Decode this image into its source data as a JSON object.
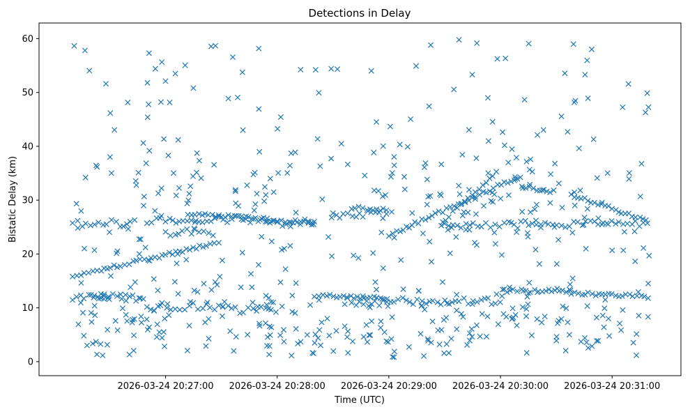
{
  "chart_data": {
    "type": "scatter",
    "title": "Detections in Delay",
    "xlabel": "Time (UTC)",
    "ylabel": "Bistatic Delay (km)",
    "x_tick_labels": [
      "2026-03-24 20:27:00",
      "2026-03-24 20:28:00",
      "2026-03-24 20:29:00",
      "2026-03-24 20:30:00",
      "2026-03-24 20:31:00"
    ],
    "y_tick_labels": [
      "0",
      "10",
      "20",
      "30",
      "40",
      "50",
      "60"
    ],
    "xlim": [
      "2026-03-24 20:25:52",
      "2026-03-24 20:31:37"
    ],
    "ylim": [
      -2.6,
      62.9
    ],
    "grid": false,
    "marker": "x",
    "marker_color": "#1f77b4",
    "series": [
      {
        "tracks": [
          {
            "x0": "2026-03-24 20:26:10",
            "x1": "2026-03-24 20:27:27",
            "y0": 15.8,
            "y1": 22.0
          },
          {
            "x0": "2026-03-24 20:29:00",
            "x1": "2026-03-24 20:30:11",
            "y0": 23.5,
            "y1": 34.5
          },
          {
            "x0": "2026-03-24 20:29:29",
            "x1": "2026-03-24 20:30:00",
            "y0": 26.0,
            "y1": 35.8
          },
          {
            "x0": "2026-03-24 20:30:38",
            "x1": "2026-03-24 20:31:20",
            "y0": 31.0,
            "y1": 26.0
          },
          {
            "x0": "2026-03-24 20:30:12",
            "x1": "2026-03-24 20:30:30",
            "y0": 32.5,
            "y1": 31.5
          },
          {
            "x0": "2026-03-24 20:27:12",
            "x1": "2026-03-24 20:28:20",
            "y0": 27.5,
            "y1": 25.8
          },
          {
            "x0": "2026-03-24 20:28:40",
            "x1": "2026-03-24 20:29:00",
            "y0": 28.6,
            "y1": 28.2
          },
          {
            "x0": "2026-03-24 20:30:02",
            "x1": "2026-03-24 20:30:38",
            "y0": 13.2,
            "y1": 13.1
          },
          {
            "x0": "2026-03-24 20:30:38",
            "x1": "2026-03-24 20:31:20",
            "y0": 12.8,
            "y1": 12.0
          },
          {
            "x0": "2026-03-24 20:28:20",
            "x1": "2026-03-24 20:29:00",
            "y0": 12.3,
            "y1": 11.8
          },
          {
            "x0": "2026-03-24 20:26:20",
            "x1": "2026-03-24 20:26:30",
            "y0": 12.2,
            "y1": 11.5
          }
        ],
        "bands": [
          {
            "x0": "2026-03-24 20:26:10",
            "x1": "2026-03-24 20:26:45",
            "y": 25.7
          },
          {
            "x0": "2026-03-24 20:26:50",
            "x1": "2026-03-24 20:28:00",
            "y": 26.4
          },
          {
            "x0": "2026-03-24 20:28:00",
            "x1": "2026-03-24 20:28:20",
            "y": 25.8
          },
          {
            "x0": "2026-03-24 20:28:30",
            "x1": "2026-03-24 20:29:00",
            "y": 27.3
          },
          {
            "x0": "2026-03-24 20:29:30",
            "x1": "2026-03-24 20:31:20",
            "y": 25.5
          },
          {
            "x0": "2026-03-24 20:26:10",
            "x1": "2026-03-24 20:26:50",
            "y": 11.9
          },
          {
            "x0": "2026-03-24 20:26:50",
            "x1": "2026-03-24 20:27:40",
            "y": 10.2
          },
          {
            "x0": "2026-03-24 20:27:40",
            "x1": "2026-03-24 20:28:00",
            "y": 9.5
          },
          {
            "x0": "2026-03-24 20:28:40",
            "x1": "2026-03-24 20:29:05",
            "y": 10.8
          },
          {
            "x0": "2026-03-24 20:29:05",
            "x1": "2026-03-24 20:30:00",
            "y": 11.3
          },
          {
            "x0": "2026-03-24 20:27:00",
            "x1": "2026-03-24 20:27:27",
            "y": 24.0
          }
        ],
        "clutter": {
          "x0": "2026-03-24 20:26:10",
          "x1": "2026-03-24 20:31:20",
          "ymin": 0.8,
          "ymax": 59.8
        }
      }
    ]
  }
}
